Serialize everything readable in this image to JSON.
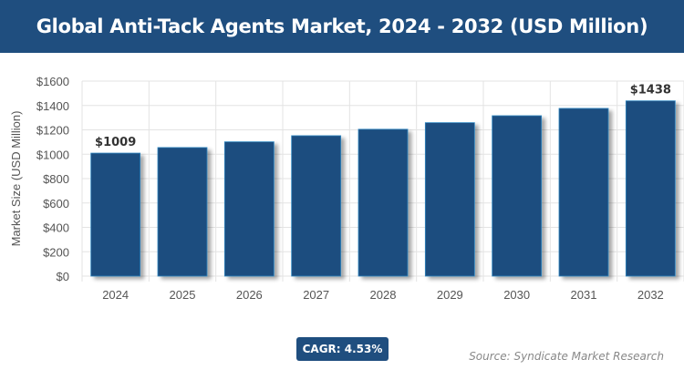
{
  "title": "Global Anti-Tack Agents Market, 2024 - 2032 (USD Million)",
  "cagr_label": "CAGR: 4.53%",
  "source": "Source: Syndicate Market Research",
  "colors": {
    "bar": "#1f4e7f",
    "bar_border": "#2e86c1",
    "header": "#1f4e7f"
  },
  "chart_data": {
    "type": "bar",
    "categories": [
      "2024",
      "2025",
      "2026",
      "2027",
      "2028",
      "2029",
      "2030",
      "2031",
      "2032"
    ],
    "values": [
      1009,
      1055,
      1102,
      1152,
      1205,
      1259,
      1316,
      1376,
      1438
    ],
    "data_labels": {
      "2024": "$1009",
      "2032": "$1438"
    },
    "ylabel": "Market Size (USD Million)",
    "xlabel": "",
    "ylim": [
      0,
      1600
    ],
    "yticks": [
      0,
      200,
      400,
      600,
      800,
      1000,
      1200,
      1400,
      1600
    ],
    "ytick_labels": [
      "$0",
      "$200",
      "$400",
      "$600",
      "$800",
      "$1000",
      "$1200",
      "$1400",
      "$1600"
    ],
    "grid": true
  }
}
